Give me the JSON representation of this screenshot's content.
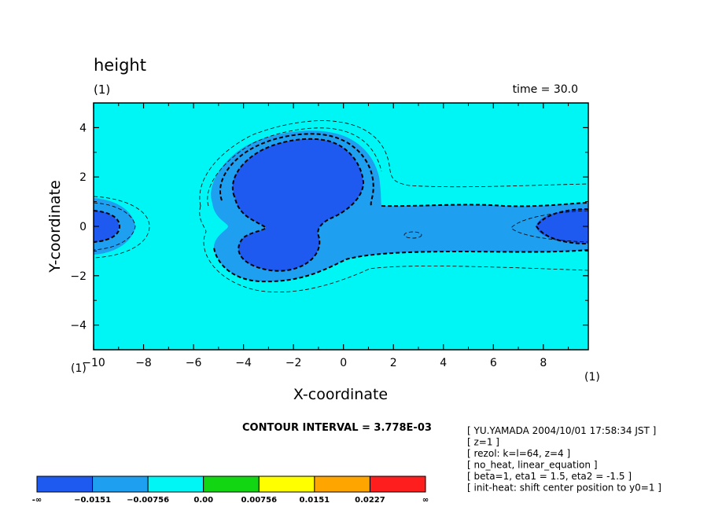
{
  "chart_data": {
    "type": "contour",
    "title": "height",
    "subtitle": "(1)",
    "time_label": "time = 30.0",
    "xlabel": "X-coordinate",
    "ylabel": "Y-coordinate",
    "xlim": [
      -10,
      9.8
    ],
    "ylim": [
      -5,
      5
    ],
    "xticks": [
      -10,
      -8,
      -6,
      -4,
      -2,
      0,
      2,
      4,
      6,
      8
    ],
    "yticks": [
      -4,
      -2,
      0,
      2,
      4
    ],
    "x_unit_label": "(1)",
    "y_unit_label": "(1)",
    "contour_interval_text": "CONTOUR INTERVAL = 3.778E-03",
    "fill_colors": [
      "#1f5af0",
      "#1e9ff0",
      "#00f5f5",
      "#11d611",
      "#ffff00",
      "#ffa500",
      "#ff1e1e"
    ],
    "colorbar_labels": [
      "-∞",
      "-0.0151",
      "-0.00756",
      "0.00",
      "0.00756",
      "0.0151",
      "0.0227",
      "∞"
    ],
    "regions": [
      {
        "name": "left-edge-low",
        "cx": -10,
        "cy": 0,
        "rx": 0.9,
        "ry": 0.45,
        "level": "below -0.0151"
      },
      {
        "name": "upper-central-low",
        "cx": -1.7,
        "cy": 2.0,
        "rx": 2.3,
        "ry": 1.5,
        "level": "below -0.0151"
      },
      {
        "name": "lower-central-low",
        "cx": -2.0,
        "cy": -0.9,
        "rx": 2.0,
        "ry": 0.9,
        "level": "below -0.0151"
      },
      {
        "name": "right-edge-low",
        "cx": 9.2,
        "cy": 0,
        "rx": 1.7,
        "ry": 0.55,
        "level": "below -0.0151"
      },
      {
        "name": "small-closed-contour",
        "cx": 2.9,
        "cy": -0.4,
        "rx": 0.35,
        "ry": 0.12,
        "level": "dashed"
      }
    ],
    "annotations": [
      "[ YU.YAMADA 2004/10/01 17:58:34 JST ]",
      "[ z=1 ]",
      "[ rezol: k=l=64, z=4 ]",
      "[ no_heat, linear_equation ]",
      "[ beta=1, eta1 = 1.5, eta2 = -1.5 ]",
      "[ init-heat: shift center position to y0=1 ]"
    ]
  }
}
